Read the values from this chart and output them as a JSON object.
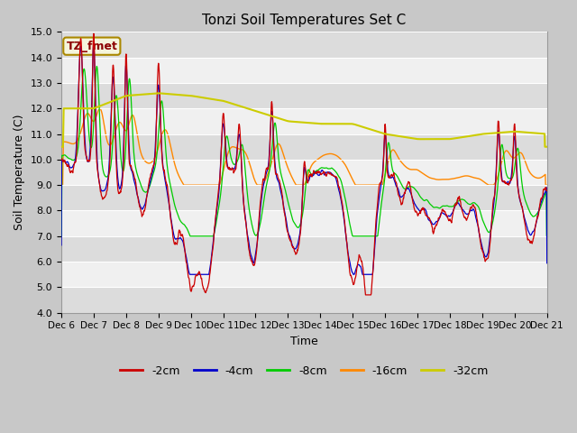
{
  "title": "Tonzi Soil Temperatures Set C",
  "xlabel": "Time",
  "ylabel": "Soil Temperature (C)",
  "ylim": [
    4.0,
    15.0
  ],
  "yticks": [
    4.0,
    5.0,
    6.0,
    7.0,
    8.0,
    9.0,
    10.0,
    11.0,
    12.0,
    13.0,
    14.0,
    15.0
  ],
  "xtick_labels": [
    "Dec 6",
    "Dec 7",
    "Dec 8",
    "Dec 9",
    "Dec 10",
    "Dec 11",
    "Dec 12",
    "Dec 13",
    "Dec 14",
    "Dec 15",
    "Dec 16",
    "Dec 17",
    "Dec 18",
    "Dec 19",
    "Dec 20",
    "Dec 21"
  ],
  "legend_label": "TZ_fmet",
  "series_labels": [
    "-2cm",
    "-4cm",
    "-8cm",
    "-16cm",
    "-32cm"
  ],
  "series_colors": [
    "#cc0000",
    "#0000cc",
    "#00cc00",
    "#ff8800",
    "#cccc00"
  ],
  "plot_bg_light": "#f0f0f0",
  "plot_bg_dark": "#dcdcdc",
  "fig_bg": "#c8c8c8"
}
